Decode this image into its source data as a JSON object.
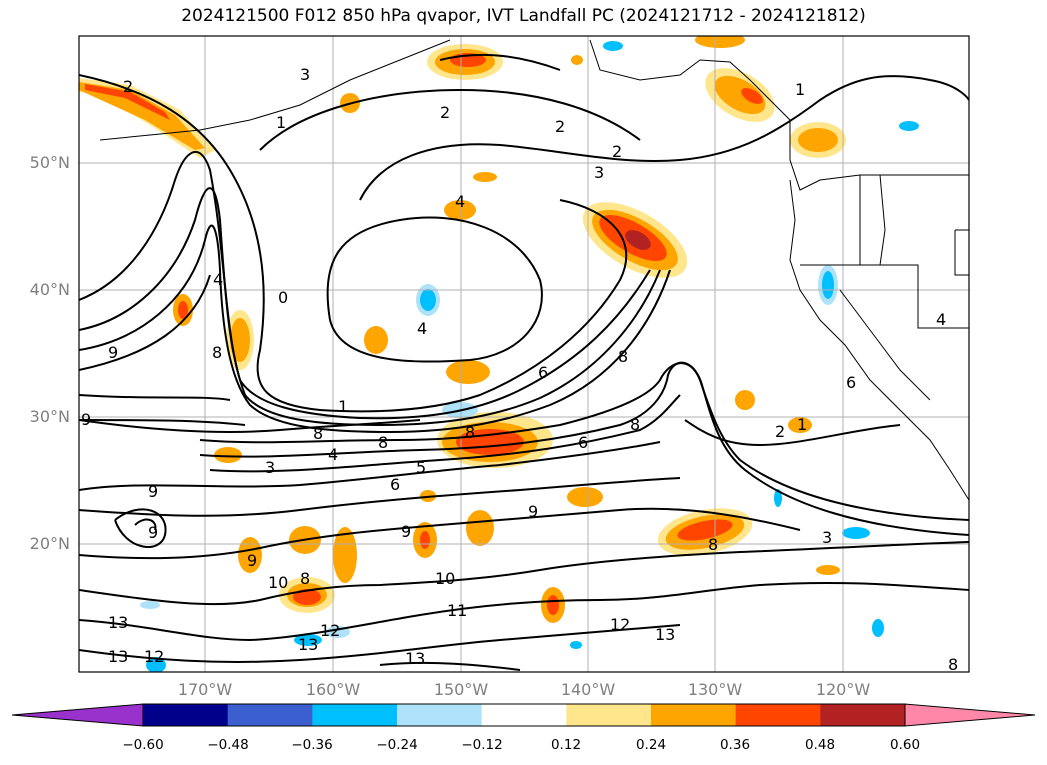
{
  "title": "2024121500 F012 850 hPa qvapor, IVT Landfall PC (2024121712 - 2024121812)",
  "map": {
    "lat_labels": [
      "50°N",
      "40°N",
      "30°N",
      "20°N"
    ],
    "lon_labels": [
      "170°W",
      "160°W",
      "150°W",
      "140°W",
      "130°W",
      "120°W"
    ],
    "gridlines": true,
    "contour_color": "#000000",
    "contour_labels": [
      "2",
      "3",
      "1",
      "2",
      "2",
      "2",
      "3",
      "4",
      "4",
      "0",
      "4",
      "6",
      "9",
      "8",
      "1",
      "8",
      "8",
      "4",
      "3",
      "5",
      "6",
      "8",
      "8",
      "6",
      "2",
      "1",
      "9",
      "9",
      "9",
      "9",
      "9",
      "8",
      "10",
      "10",
      "11",
      "12",
      "13",
      "12",
      "13",
      "13",
      "13",
      "12",
      "13",
      "8",
      "8",
      "3",
      "1",
      "6",
      "4",
      "9",
      "8"
    ]
  },
  "colorbar": {
    "colors": [
      "#9932cc",
      "#00008b",
      "#3b5fcf",
      "#00bfff",
      "#aee2fa",
      "#ffffff",
      "#ffe68c",
      "#ffa500",
      "#ff4500",
      "#b22222",
      "#ff88a8"
    ],
    "ticks": [
      "−0.60",
      "−0.48",
      "−0.36",
      "−0.24",
      "−0.12",
      "0.12",
      "0.24",
      "0.36",
      "0.48",
      "0.60"
    ],
    "extend": "both"
  },
  "palette": {
    "positive_light": "#ffe68c",
    "positive_mid": "#ffa500",
    "positive_high": "#ff4500",
    "positive_max": "#b22222",
    "negative_light": "#aee2fa",
    "negative_mid": "#00bfff"
  }
}
